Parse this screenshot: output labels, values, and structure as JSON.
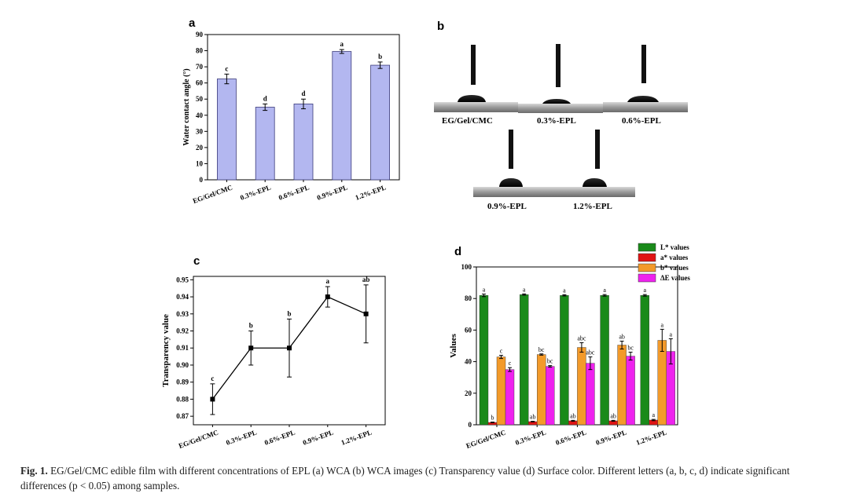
{
  "panels": {
    "a": "a",
    "b": "b",
    "c": "c",
    "d": "d"
  },
  "chart_data": [
    {
      "panel": "a",
      "type": "bar",
      "categories": [
        "EG/Gel/CMC",
        "0.3%-EPL",
        "0.6%-EPL",
        "0.9%-EPL",
        "1.2%-EPL"
      ],
      "values": [
        62.5,
        45,
        47,
        79.5,
        71
      ],
      "errors": [
        3,
        2,
        3,
        1.2,
        2
      ],
      "letters": [
        "c",
        "d",
        "d",
        "a",
        "b"
      ],
      "ylabel": "Water contact angle (°)",
      "ylim": [
        0,
        90
      ],
      "yticks": [
        "0",
        "10",
        "20",
        "30",
        "40",
        "50",
        "60",
        "70",
        "80",
        "90"
      ],
      "bar_color": "#b3b7f0"
    },
    {
      "panel": "c",
      "type": "line",
      "categories": [
        "EG/Gel/CMC",
        "0.3%-EPL",
        "0.6%-EPL",
        "0.9%-EPL",
        "1.2%-EPL"
      ],
      "values": [
        0.88,
        0.91,
        0.91,
        0.94,
        0.93
      ],
      "errors": [
        0.009,
        0.01,
        0.017,
        0.006,
        0.017
      ],
      "letters": [
        "c",
        "b",
        "b",
        "a",
        "ab"
      ],
      "ylabel": "Transparency value",
      "ylim": [
        0.865,
        0.952
      ],
      "yticks": [
        "0.87",
        "0.88",
        "0.89",
        "0.90",
        "0.91",
        "0.92",
        "0.93",
        "0.94",
        "0.95"
      ]
    },
    {
      "panel": "d",
      "type": "bar",
      "categories": [
        "EG/Gel/CMC",
        "0.3%-EPL",
        "0.6%-EPL",
        "0.9%-EPL",
        "1.2%-EPL"
      ],
      "ylabel": "Values",
      "ylim": [
        0,
        100
      ],
      "yticks": [
        "0",
        "20",
        "40",
        "60",
        "80",
        "100"
      ],
      "series": [
        {
          "name": "L* values",
          "color": "#1a8a1a",
          "values": [
            82,
            82.5,
            82,
            82,
            82
          ],
          "errors": [
            0.8,
            0.4,
            0.4,
            0.5,
            0.5
          ],
          "letters": [
            "a",
            "a",
            "a",
            "a",
            "a"
          ]
        },
        {
          "name": "a* values",
          "color": "#e01414",
          "values": [
            1.5,
            2,
            2.5,
            2.5,
            3
          ],
          "errors": [
            0.2,
            0.2,
            0.3,
            0.3,
            0.4
          ],
          "letters": [
            "b",
            "ab",
            "ab",
            "ab",
            "a"
          ]
        },
        {
          "name": "b* values",
          "color": "#f39a2a",
          "values": [
            43,
            44.5,
            49,
            50.5,
            53.5
          ],
          "errors": [
            1,
            0.4,
            3,
            2.5,
            7
          ],
          "letters": [
            "c",
            "bc",
            "abc",
            "ab",
            "a"
          ]
        },
        {
          "name": "ΔE values",
          "color": "#ee22ee",
          "values": [
            35,
            37,
            39,
            43.5,
            46.5
          ],
          "errors": [
            1.2,
            0.5,
            4,
            2.5,
            8
          ],
          "letters": [
            "c",
            "bc",
            "abc",
            "bc",
            "a"
          ]
        }
      ]
    }
  ],
  "images_b": [
    "EG/Gel/CMC",
    "0.3%-EPL",
    "0.6%-EPL",
    "0.9%-EPL",
    "1.2%-EPL"
  ],
  "caption": {
    "label": "Fig. 1.",
    "text": " EG/Gel/CMC edible film with different concentrations of EPL (a) WCA (b) WCA images (c) Transparency value (d) Surface color. Different letters (a, b, c, d) indicate significant differences (p < 0.05) among samples."
  }
}
